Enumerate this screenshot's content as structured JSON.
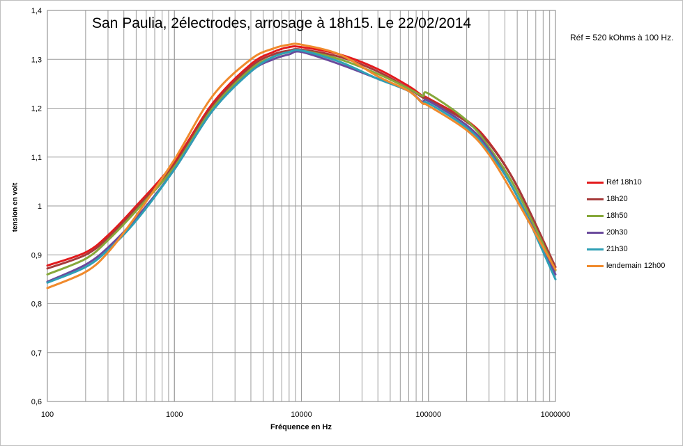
{
  "chart_data": {
    "type": "line",
    "title": "San Paulia, 2électrodes, arrosage à 18h15. Le 22/02/2014",
    "annotation": "Réf = 520 kOhms à 100 Hz.",
    "xlabel": "Fréquence en Hz",
    "ylabel": "tension en volt",
    "x_scale": "log",
    "xlim": [
      100,
      1000000
    ],
    "ylim": [
      0.6,
      1.4
    ],
    "x_ticks": [
      "100",
      "1000",
      "10000",
      "100000",
      "1000000"
    ],
    "y_ticks": [
      "0,6",
      "0,7",
      "0,8",
      "0,9",
      "1",
      "1,1",
      "1,2",
      "1,3",
      "1,4"
    ],
    "grid": true,
    "legend_position": "right",
    "series": [
      {
        "name": "Réf 18h10",
        "color": "#e31a1c",
        "x": [
          100,
          200,
          300,
          500,
          1000,
          2000,
          4000,
          6000,
          8000,
          10000,
          20000,
          40000,
          70000,
          90000,
          100000,
          200000,
          300000,
          500000,
          1000000
        ],
        "y": [
          0.878,
          0.905,
          0.94,
          1.0,
          1.09,
          1.21,
          1.29,
          1.315,
          1.325,
          1.325,
          1.31,
          1.28,
          1.245,
          1.225,
          1.22,
          1.175,
          1.13,
          1.04,
          0.875
        ]
      },
      {
        "name": "18h20",
        "color": "#a63a3a",
        "x": [
          100,
          200,
          300,
          500,
          1000,
          2000,
          4000,
          6000,
          8000,
          10000,
          20000,
          40000,
          70000,
          90000,
          100000,
          200000,
          300000,
          500000,
          1000000
        ],
        "y": [
          0.872,
          0.9,
          0.935,
          0.995,
          1.085,
          1.205,
          1.285,
          1.31,
          1.318,
          1.32,
          1.305,
          1.275,
          1.24,
          1.222,
          1.218,
          1.172,
          1.128,
          1.04,
          0.875
        ]
      },
      {
        "name": "18h50",
        "color": "#86a83a",
        "x": [
          100,
          200,
          300,
          500,
          1000,
          2000,
          4000,
          6000,
          8000,
          10000,
          20000,
          40000,
          70000,
          90000,
          100000,
          200000,
          300000,
          500000,
          1000000
        ],
        "y": [
          0.86,
          0.892,
          0.93,
          0.99,
          1.08,
          1.2,
          1.28,
          1.305,
          1.315,
          1.318,
          1.3,
          1.27,
          1.24,
          1.225,
          1.23,
          1.175,
          1.12,
          1.03,
          0.868
        ]
      },
      {
        "name": "20h30",
        "color": "#6a4a9c",
        "x": [
          100,
          200,
          300,
          500,
          1000,
          2000,
          4000,
          6000,
          8000,
          10000,
          20000,
          40000,
          70000,
          90000,
          100000,
          200000,
          300000,
          500000,
          1000000
        ],
        "y": [
          0.845,
          0.88,
          0.915,
          0.975,
          1.075,
          1.195,
          1.275,
          1.3,
          1.31,
          1.315,
          1.29,
          1.26,
          1.235,
          1.212,
          1.215,
          1.165,
          1.115,
          1.02,
          0.86
        ]
      },
      {
        "name": "21h30",
        "color": "#2e9fb5",
        "x": [
          100,
          200,
          300,
          500,
          1000,
          2000,
          4000,
          6000,
          8000,
          10000,
          20000,
          40000,
          70000,
          90000,
          100000,
          200000,
          300000,
          500000,
          1000000
        ],
        "y": [
          0.843,
          0.875,
          0.91,
          0.97,
          1.075,
          1.195,
          1.275,
          1.305,
          1.315,
          1.318,
          1.295,
          1.26,
          1.235,
          1.21,
          1.21,
          1.16,
          1.11,
          1.02,
          0.85
        ]
      },
      {
        "name": "lendemain 12h00",
        "color": "#f08a2c",
        "x": [
          100,
          200,
          300,
          500,
          1000,
          2000,
          4000,
          6000,
          8000,
          10000,
          20000,
          40000,
          70000,
          90000,
          100000,
          200000,
          300000,
          500000,
          1000000
        ],
        "y": [
          0.832,
          0.865,
          0.905,
          0.98,
          1.095,
          1.225,
          1.3,
          1.322,
          1.33,
          1.33,
          1.31,
          1.265,
          1.235,
          1.21,
          1.205,
          1.155,
          1.105,
          1.01,
          0.87
        ]
      }
    ]
  }
}
